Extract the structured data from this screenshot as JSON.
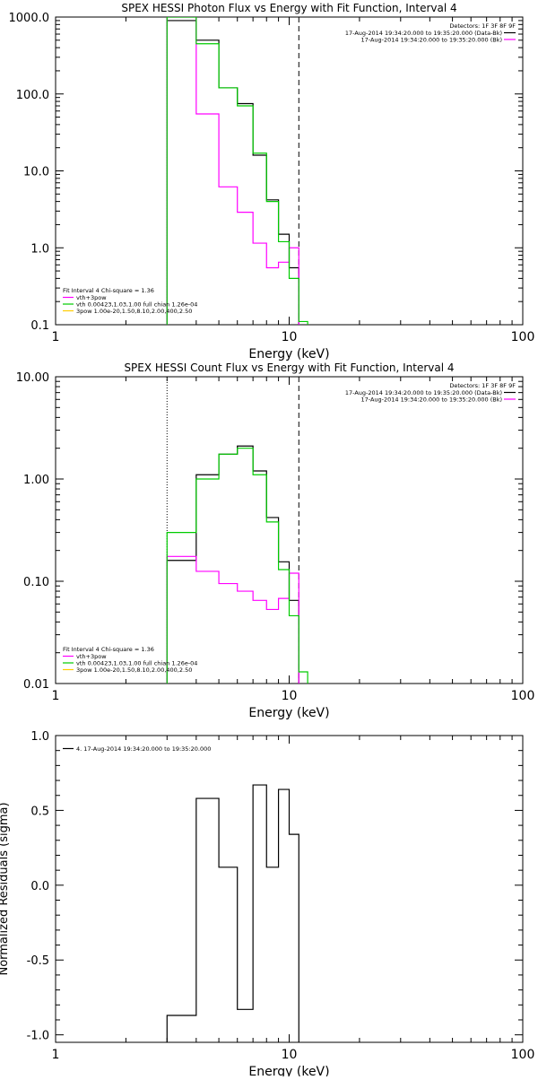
{
  "chart_data": [
    {
      "type": "line",
      "title": "SPEX HESSI Photon Flux vs Energy with Fit Function, Interval 4",
      "xlabel": "Energy (keV)",
      "ylabel": "",
      "xscale": "log",
      "yscale": "log",
      "xlim": [
        1,
        100
      ],
      "ylim": [
        0.1,
        1000
      ],
      "xticks": [
        {
          "v": 1,
          "label": "1"
        },
        {
          "v": 10,
          "label": "10"
        },
        {
          "v": 100,
          "label": "100"
        }
      ],
      "yticks": [
        {
          "v": 0.1,
          "label": "0.1"
        },
        {
          "v": 1,
          "label": "1.0"
        },
        {
          "v": 10,
          "label": "10.0"
        },
        {
          "v": 100,
          "label": "100.0"
        },
        {
          "v": 1000,
          "label": "1000.0"
        }
      ],
      "vlines": [
        {
          "x": 3,
          "style": "dotted"
        },
        {
          "x": 11,
          "style": "dashed"
        }
      ],
      "edges": [
        3,
        4,
        5,
        6,
        7,
        8,
        9,
        10,
        11,
        12
      ],
      "series": [
        {
          "name": "",
          "color": "#000000",
          "values": [
            900,
            500,
            120,
            75,
            16,
            4.2,
            1.5,
            0.55,
            0,
            0
          ]
        },
        {
          "name": "",
          "color": "#ff00ff",
          "values": [
            1000,
            55,
            6.2,
            2.9,
            1.15,
            0.55,
            0.65,
            1.0,
            0,
            0
          ]
        },
        {
          "name": "",
          "color": "#00cc00",
          "values": [
            1000,
            450,
            120,
            70,
            17,
            4.0,
            1.2,
            0.4,
            0.11,
            0.1
          ]
        }
      ],
      "legend_tr": {
        "header": "Detectors: 1F 3F 8F 9F",
        "items": [
          {
            "text": "17-Aug-2014 19:34:20.000 to 19:35:20.000 (Data-Bk)",
            "color": "#000000"
          },
          {
            "text": "17-Aug-2014 19:34:20.000 to 19:35:20.000 (Bk)",
            "color": "#ff00ff"
          }
        ]
      },
      "legend_bl": {
        "header": "Fit Interval  4   Chi-square = 1.36",
        "items": [
          {
            "text": "vth+3pow",
            "color": "#ff00ff"
          },
          {
            "text": "vth 0.00423,1.03,1.00  full chian 1.26e-04",
            "color": "#00cc00"
          },
          {
            "text": "3pow 1.00e-20,1.50,8.10,2.00,400,2.50",
            "color": "#ffcc00"
          }
        ]
      }
    },
    {
      "type": "line",
      "title": "SPEX HESSI Count Flux vs Energy with Fit Function, Interval 4",
      "xlabel": "Energy (keV)",
      "ylabel": "",
      "xscale": "log",
      "yscale": "log",
      "xlim": [
        1,
        100
      ],
      "ylim": [
        0.01,
        10
      ],
      "xticks": [
        {
          "v": 1,
          "label": "1"
        },
        {
          "v": 10,
          "label": "10"
        },
        {
          "v": 100,
          "label": "100"
        }
      ],
      "yticks": [
        {
          "v": 0.01,
          "label": "0.01"
        },
        {
          "v": 0.1,
          "label": "0.10"
        },
        {
          "v": 1,
          "label": "1.00"
        },
        {
          "v": 10,
          "label": "10.00"
        }
      ],
      "vlines": [
        {
          "x": 3,
          "style": "dotted"
        },
        {
          "x": 11,
          "style": "dashed"
        }
      ],
      "edges": [
        3,
        4,
        5,
        6,
        7,
        8,
        9,
        10,
        11,
        12
      ],
      "series": [
        {
          "name": "",
          "color": "#000000",
          "values": [
            0.16,
            1.1,
            1.75,
            2.1,
            1.2,
            0.42,
            0.155,
            0.065,
            0,
            0
          ]
        },
        {
          "name": "",
          "color": "#ff00ff",
          "values": [
            0.175,
            0.125,
            0.095,
            0.08,
            0.065,
            0.053,
            0.068,
            0.12,
            0,
            0
          ]
        },
        {
          "name": "",
          "color": "#00cc00",
          "values": [
            0.3,
            1.0,
            1.75,
            2.0,
            1.1,
            0.38,
            0.13,
            0.046,
            0.013,
            0.01
          ]
        }
      ],
      "legend_tr": {
        "header": "Detectors: 1F 3F 8F 9F",
        "items": [
          {
            "text": "17-Aug-2014 19:34:20.000 to 19:35:20.000 (Data-Bk)",
            "color": "#000000"
          },
          {
            "text": "17-Aug-2014 19:34:20.000 to 19:35:20.000 (Bk)",
            "color": "#ff00ff"
          }
        ]
      },
      "legend_bl": {
        "header": "Fit Interval  4   Chi-square = 1.36",
        "items": [
          {
            "text": "vth+3pow",
            "color": "#ff00ff"
          },
          {
            "text": "vth 0.00423,1.03,1.00  full chian 1.26e-04",
            "color": "#00cc00"
          },
          {
            "text": "3pow 1.00e-20,1.50,8.10,2.00,400,2.50",
            "color": "#ffcc00"
          }
        ]
      }
    },
    {
      "type": "line",
      "title": "",
      "xlabel": "Energy (keV)",
      "ylabel": "Normalized Residuals (sigma)",
      "xscale": "log",
      "yscale": "linear",
      "xlim": [
        1,
        100
      ],
      "ylim": [
        -1.05,
        1.0
      ],
      "xticks": [
        {
          "v": 1,
          "label": "1"
        },
        {
          "v": 10,
          "label": "10"
        },
        {
          "v": 100,
          "label": "100"
        }
      ],
      "yticks": [
        {
          "v": -1,
          "label": "-1.0"
        },
        {
          "v": -0.5,
          "label": "-0.5"
        },
        {
          "v": 0,
          "label": "0.0"
        },
        {
          "v": 0.5,
          "label": "0.5"
        },
        {
          "v": 1,
          "label": "1.0"
        }
      ],
      "vlines": [],
      "edges": [
        3,
        4,
        5,
        6,
        7,
        8,
        9,
        10,
        11
      ],
      "series": [
        {
          "name": "",
          "color": "#000000",
          "values": [
            -0.87,
            0.58,
            0.12,
            -0.83,
            0.67,
            0.12,
            0.64,
            0.34
          ]
        }
      ],
      "legend_tr": null,
      "legend_bl": null,
      "legend_tl": {
        "items": [
          {
            "text": "4. 17-Aug-2014 19:34:20.000 to 19:35:20.000",
            "color": "#000000"
          }
        ]
      }
    }
  ]
}
